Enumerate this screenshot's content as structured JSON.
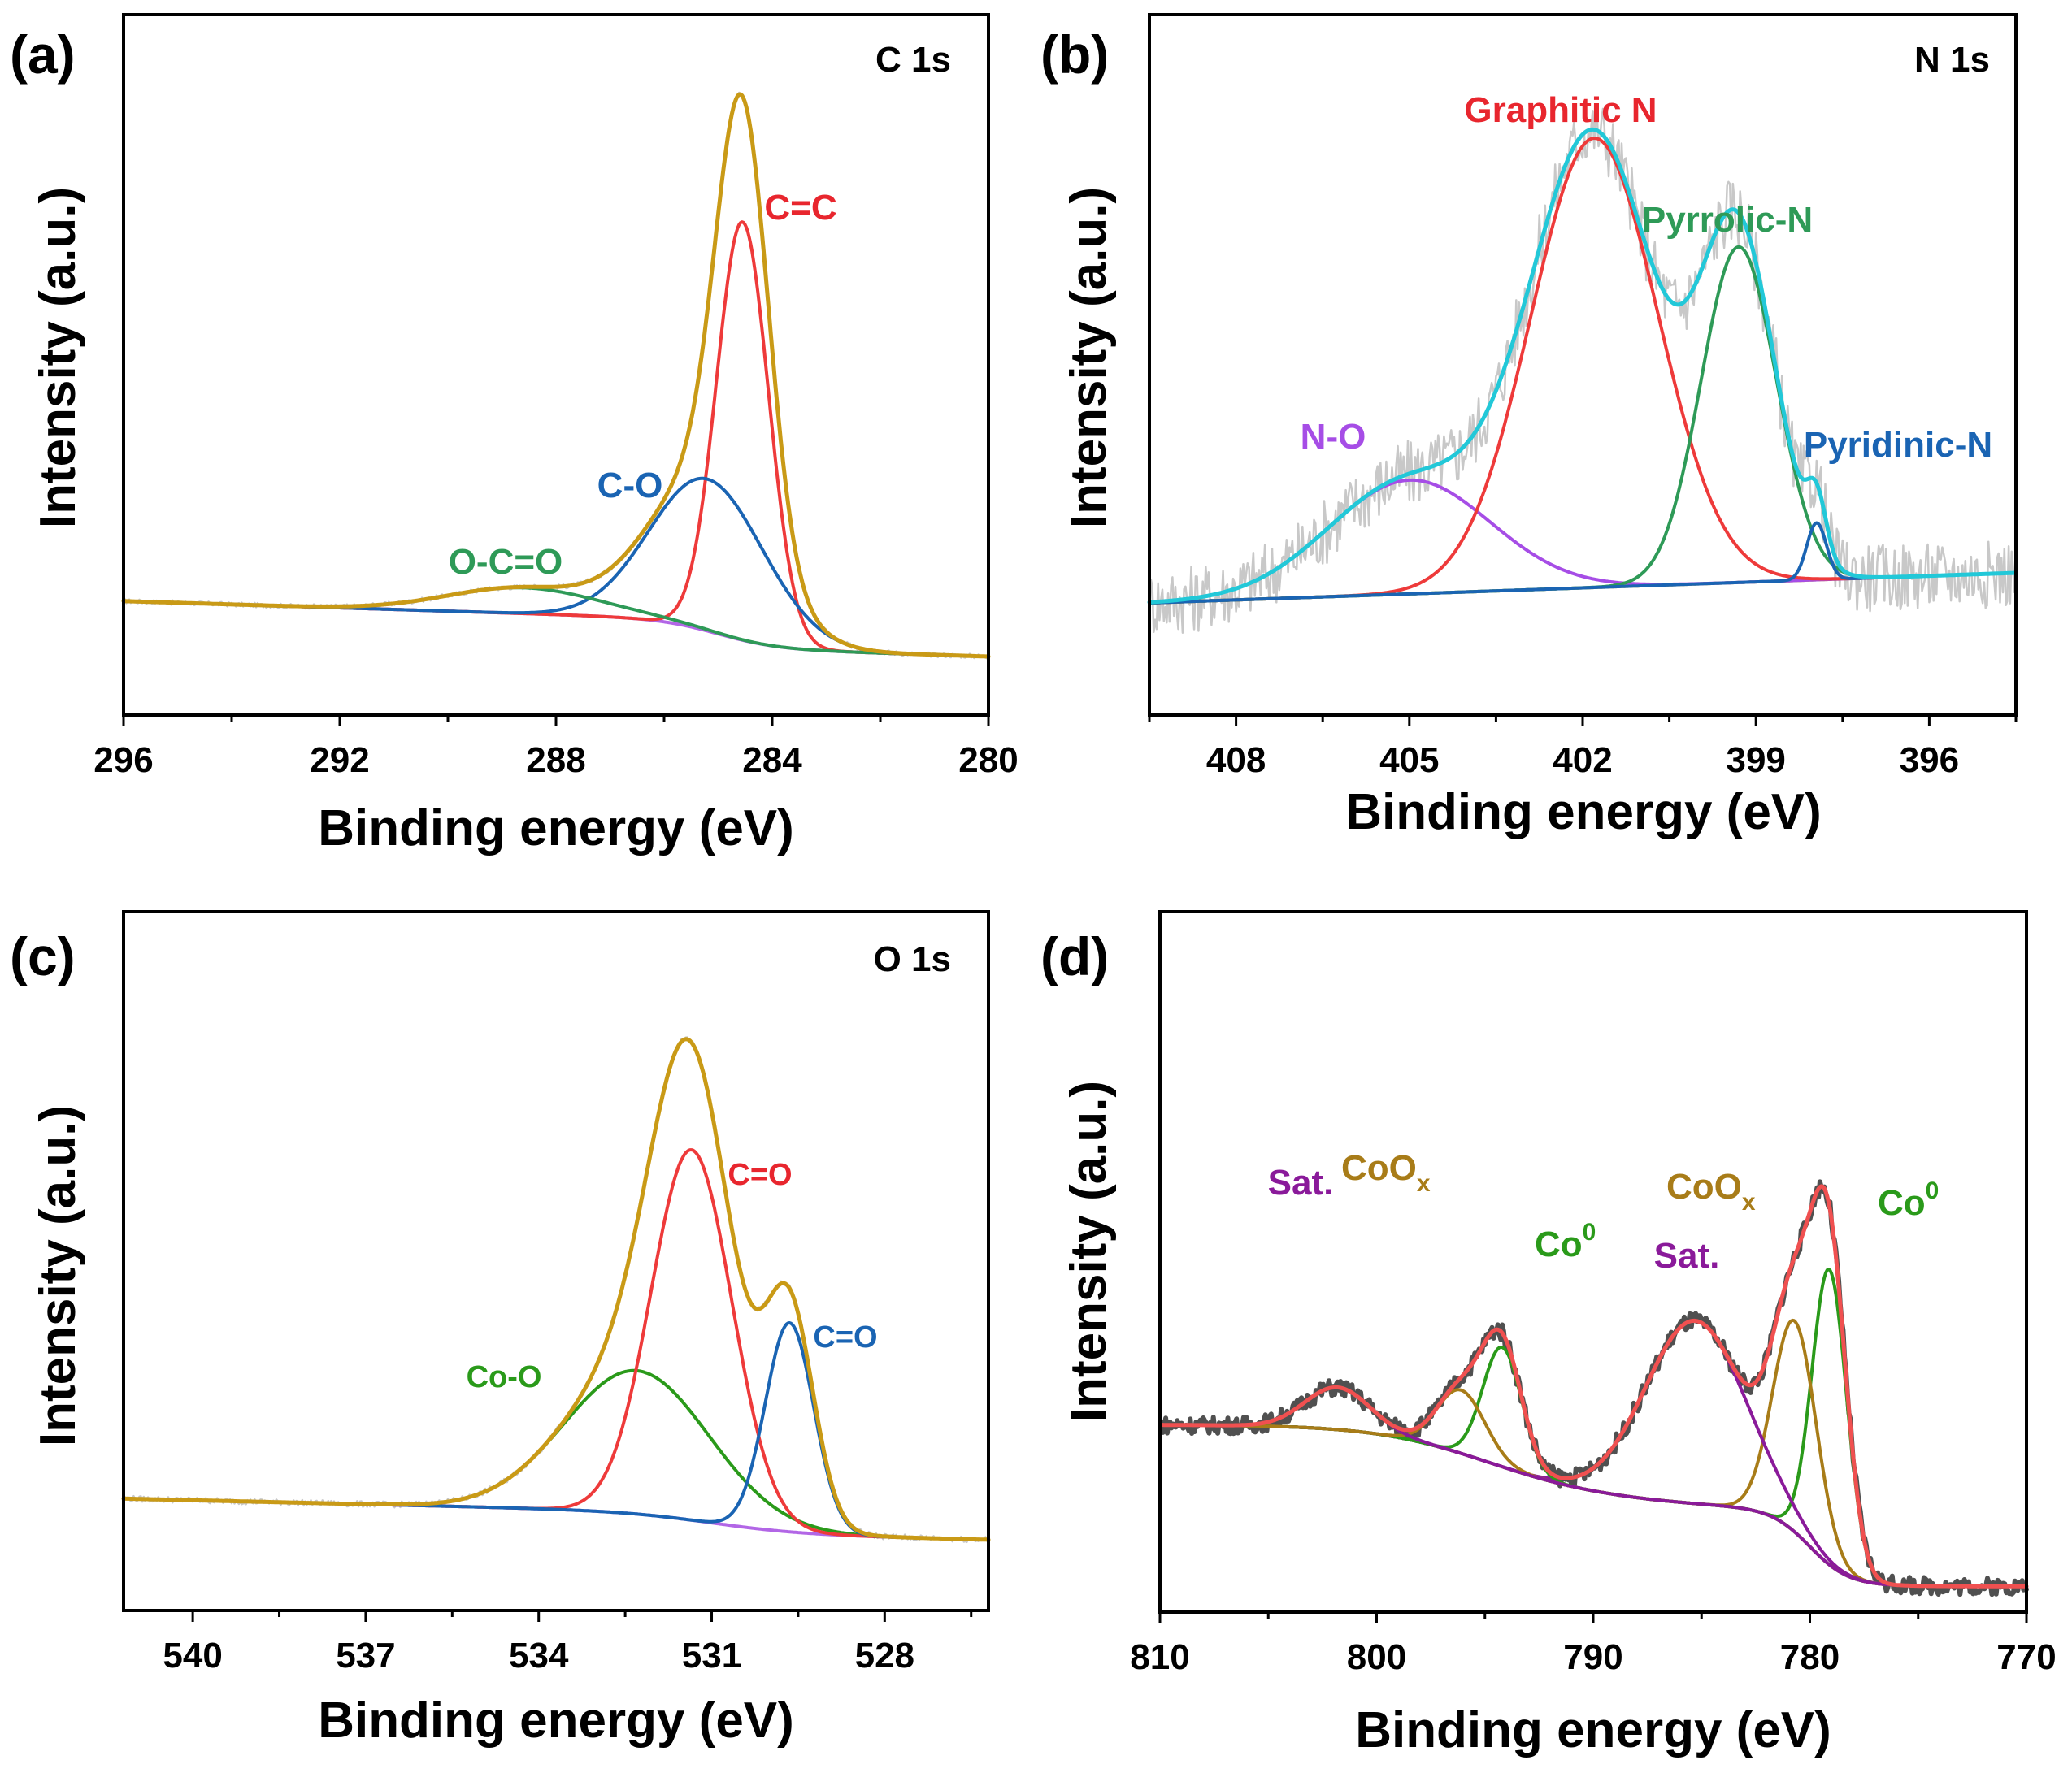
{
  "chart_data": [
    {
      "type": "line",
      "panel_label": "(a)",
      "core_level": "C 1s",
      "xlabel": "Binding energy (eV)",
      "ylabel": "Intensity (a.u.)",
      "xlim": [
        296,
        280
      ],
      "xticks": [
        296,
        292,
        288,
        284,
        280
      ],
      "annotations": [
        {
          "text": "C=C",
          "color": "#e8262e"
        },
        {
          "text": "C-O",
          "color": "#1a64b3"
        },
        {
          "text": "O-C=O",
          "color": "#2e9a57"
        }
      ],
      "series": [
        {
          "name": "background",
          "color": "#b266e6",
          "peak": null
        },
        {
          "name": "C=C",
          "color": "#ee3a3a",
          "peak": {
            "center": 284.55,
            "height": 0.73,
            "width": 0.48
          }
        },
        {
          "name": "C-O",
          "color": "#1a64b3",
          "peak": {
            "center": 285.2,
            "height": 0.265,
            "width": 1.05
          }
        },
        {
          "name": "O-C=O",
          "color": "#2e9a57",
          "peak": {
            "center": 288.6,
            "height": 0.045,
            "width": 1.4
          }
        },
        {
          "name": "envelope",
          "color": "#c99a16"
        },
        {
          "name": "raw",
          "color": "#c8c8c8"
        }
      ]
    },
    {
      "type": "line",
      "panel_label": "(b)",
      "core_level": "N 1s",
      "xlabel": "Binding energy (eV)",
      "ylabel": "Intensity (a.u.)",
      "xlim": [
        409.5,
        394.5
      ],
      "xticks": [
        408,
        405,
        402,
        399,
        396
      ],
      "annotations": [
        {
          "text": "Graphitic N",
          "color": "#e8262e"
        },
        {
          "text": "Pyrrolic-N",
          "color": "#2e9a57"
        },
        {
          "text": "Pyridinic-N",
          "color": "#1a64b3"
        },
        {
          "text": "N-O",
          "color": "#a64de6"
        }
      ],
      "series": [
        {
          "name": "background",
          "color": "#c99a16",
          "peak": null
        },
        {
          "name": "N-O",
          "color": "#a64de6",
          "peak": {
            "center": 405.0,
            "height": 0.2,
            "width": 1.4
          }
        },
        {
          "name": "Graphitic N",
          "color": "#ee3a3a",
          "peak": {
            "center": 401.8,
            "height": 0.79,
            "width": 1.1
          }
        },
        {
          "name": "Pyrrolic-N",
          "color": "#2e9a57",
          "peak": {
            "center": 399.3,
            "height": 0.59,
            "width": 0.65
          }
        },
        {
          "name": "Pyridinic-N",
          "color": "#1a64b3",
          "peak": {
            "center": 397.95,
            "height": 0.1,
            "width": 0.17
          }
        },
        {
          "name": "envelope",
          "color": "#22c8d8"
        },
        {
          "name": "raw",
          "color": "#c8c8c8"
        }
      ]
    },
    {
      "type": "line",
      "panel_label": "(c)",
      "core_level": "O 1s",
      "xlabel": "Binding energy (eV)",
      "ylabel": "Intensity (a.u.)",
      "xlim": [
        541.2,
        526.2
      ],
      "xticks": [
        540,
        537,
        534,
        531,
        528
      ],
      "annotations": [
        {
          "text": "C=O",
          "color": "#e8262e"
        },
        {
          "text": "C=O",
          "color": "#1a64b3"
        },
        {
          "text": "Co-O",
          "color": "#2a9a1a"
        }
      ],
      "series": [
        {
          "name": "background",
          "color": "#b266e6",
          "peak": null
        },
        {
          "name": "Co-O",
          "color": "#2a9a1a",
          "peak": {
            "center": 532.3,
            "height": 0.24,
            "width": 1.25
          }
        },
        {
          "name": "C=O",
          "color": "#ee3a3a",
          "peak": {
            "center": 531.35,
            "height": 0.62,
            "width": 0.7
          }
        },
        {
          "name": "C=O (2)",
          "color": "#1a64b3",
          "peak": {
            "center": 529.65,
            "height": 0.35,
            "width": 0.42
          }
        },
        {
          "name": "envelope",
          "color": "#c99a16"
        },
        {
          "name": "raw",
          "color": "#c8c8c8"
        }
      ]
    },
    {
      "type": "line",
      "panel_label": "(d)",
      "core_level": "",
      "xlabel": "Binding energy (eV)",
      "ylabel": "Intensity (a.u.)",
      "xlim": [
        810,
        770
      ],
      "xticks": [
        810,
        800,
        790,
        780,
        770
      ],
      "annotations": [
        {
          "text": "Sat.",
          "color": "#8a1a9a"
        },
        {
          "text": "CoO",
          "sub": "x",
          "color": "#a87c18"
        },
        {
          "text": "Co",
          "sup": "0",
          "color": "#2a9a1a"
        },
        {
          "text": "Sat.",
          "color": "#8a1a9a"
        },
        {
          "text": "CoO",
          "sub": "x",
          "color": "#a87c18"
        },
        {
          "text": "Co",
          "sup": "0",
          "color": "#2a9a1a"
        }
      ],
      "series": [
        {
          "name": "background",
          "color": "#5a2a9a",
          "peak": null
        },
        {
          "name": "Co0 (2p3/2)",
          "color": "#2a9a1a",
          "peak": {
            "center": 779.1,
            "height": 0.42,
            "width": 0.8
          }
        },
        {
          "name": "CoOx (2p3/2)",
          "color": "#a87c18",
          "peak": {
            "center": 780.7,
            "height": 0.3,
            "width": 1.0
          }
        },
        {
          "name": "Sat. (2p3/2)",
          "color": "#8a1a9a",
          "peak": {
            "center": 785.3,
            "height": 0.26,
            "width": 2.3
          }
        },
        {
          "name": "Co0 (2p1/2)",
          "color": "#2a9a1a",
          "peak": {
            "center": 794.2,
            "height": 0.17,
            "width": 0.9
          }
        },
        {
          "name": "CoOx (2p1/2)",
          "color": "#a87c18",
          "peak": {
            "center": 796.1,
            "height": 0.09,
            "width": 1.1
          }
        },
        {
          "name": "Sat. (2p1/2)",
          "color": "#8a1a9a",
          "peak": {
            "center": 801.8,
            "height": 0.06,
            "width": 1.5
          }
        },
        {
          "name": "envelope",
          "color": "#f05050"
        },
        {
          "name": "raw",
          "color": "#505050"
        }
      ]
    }
  ]
}
